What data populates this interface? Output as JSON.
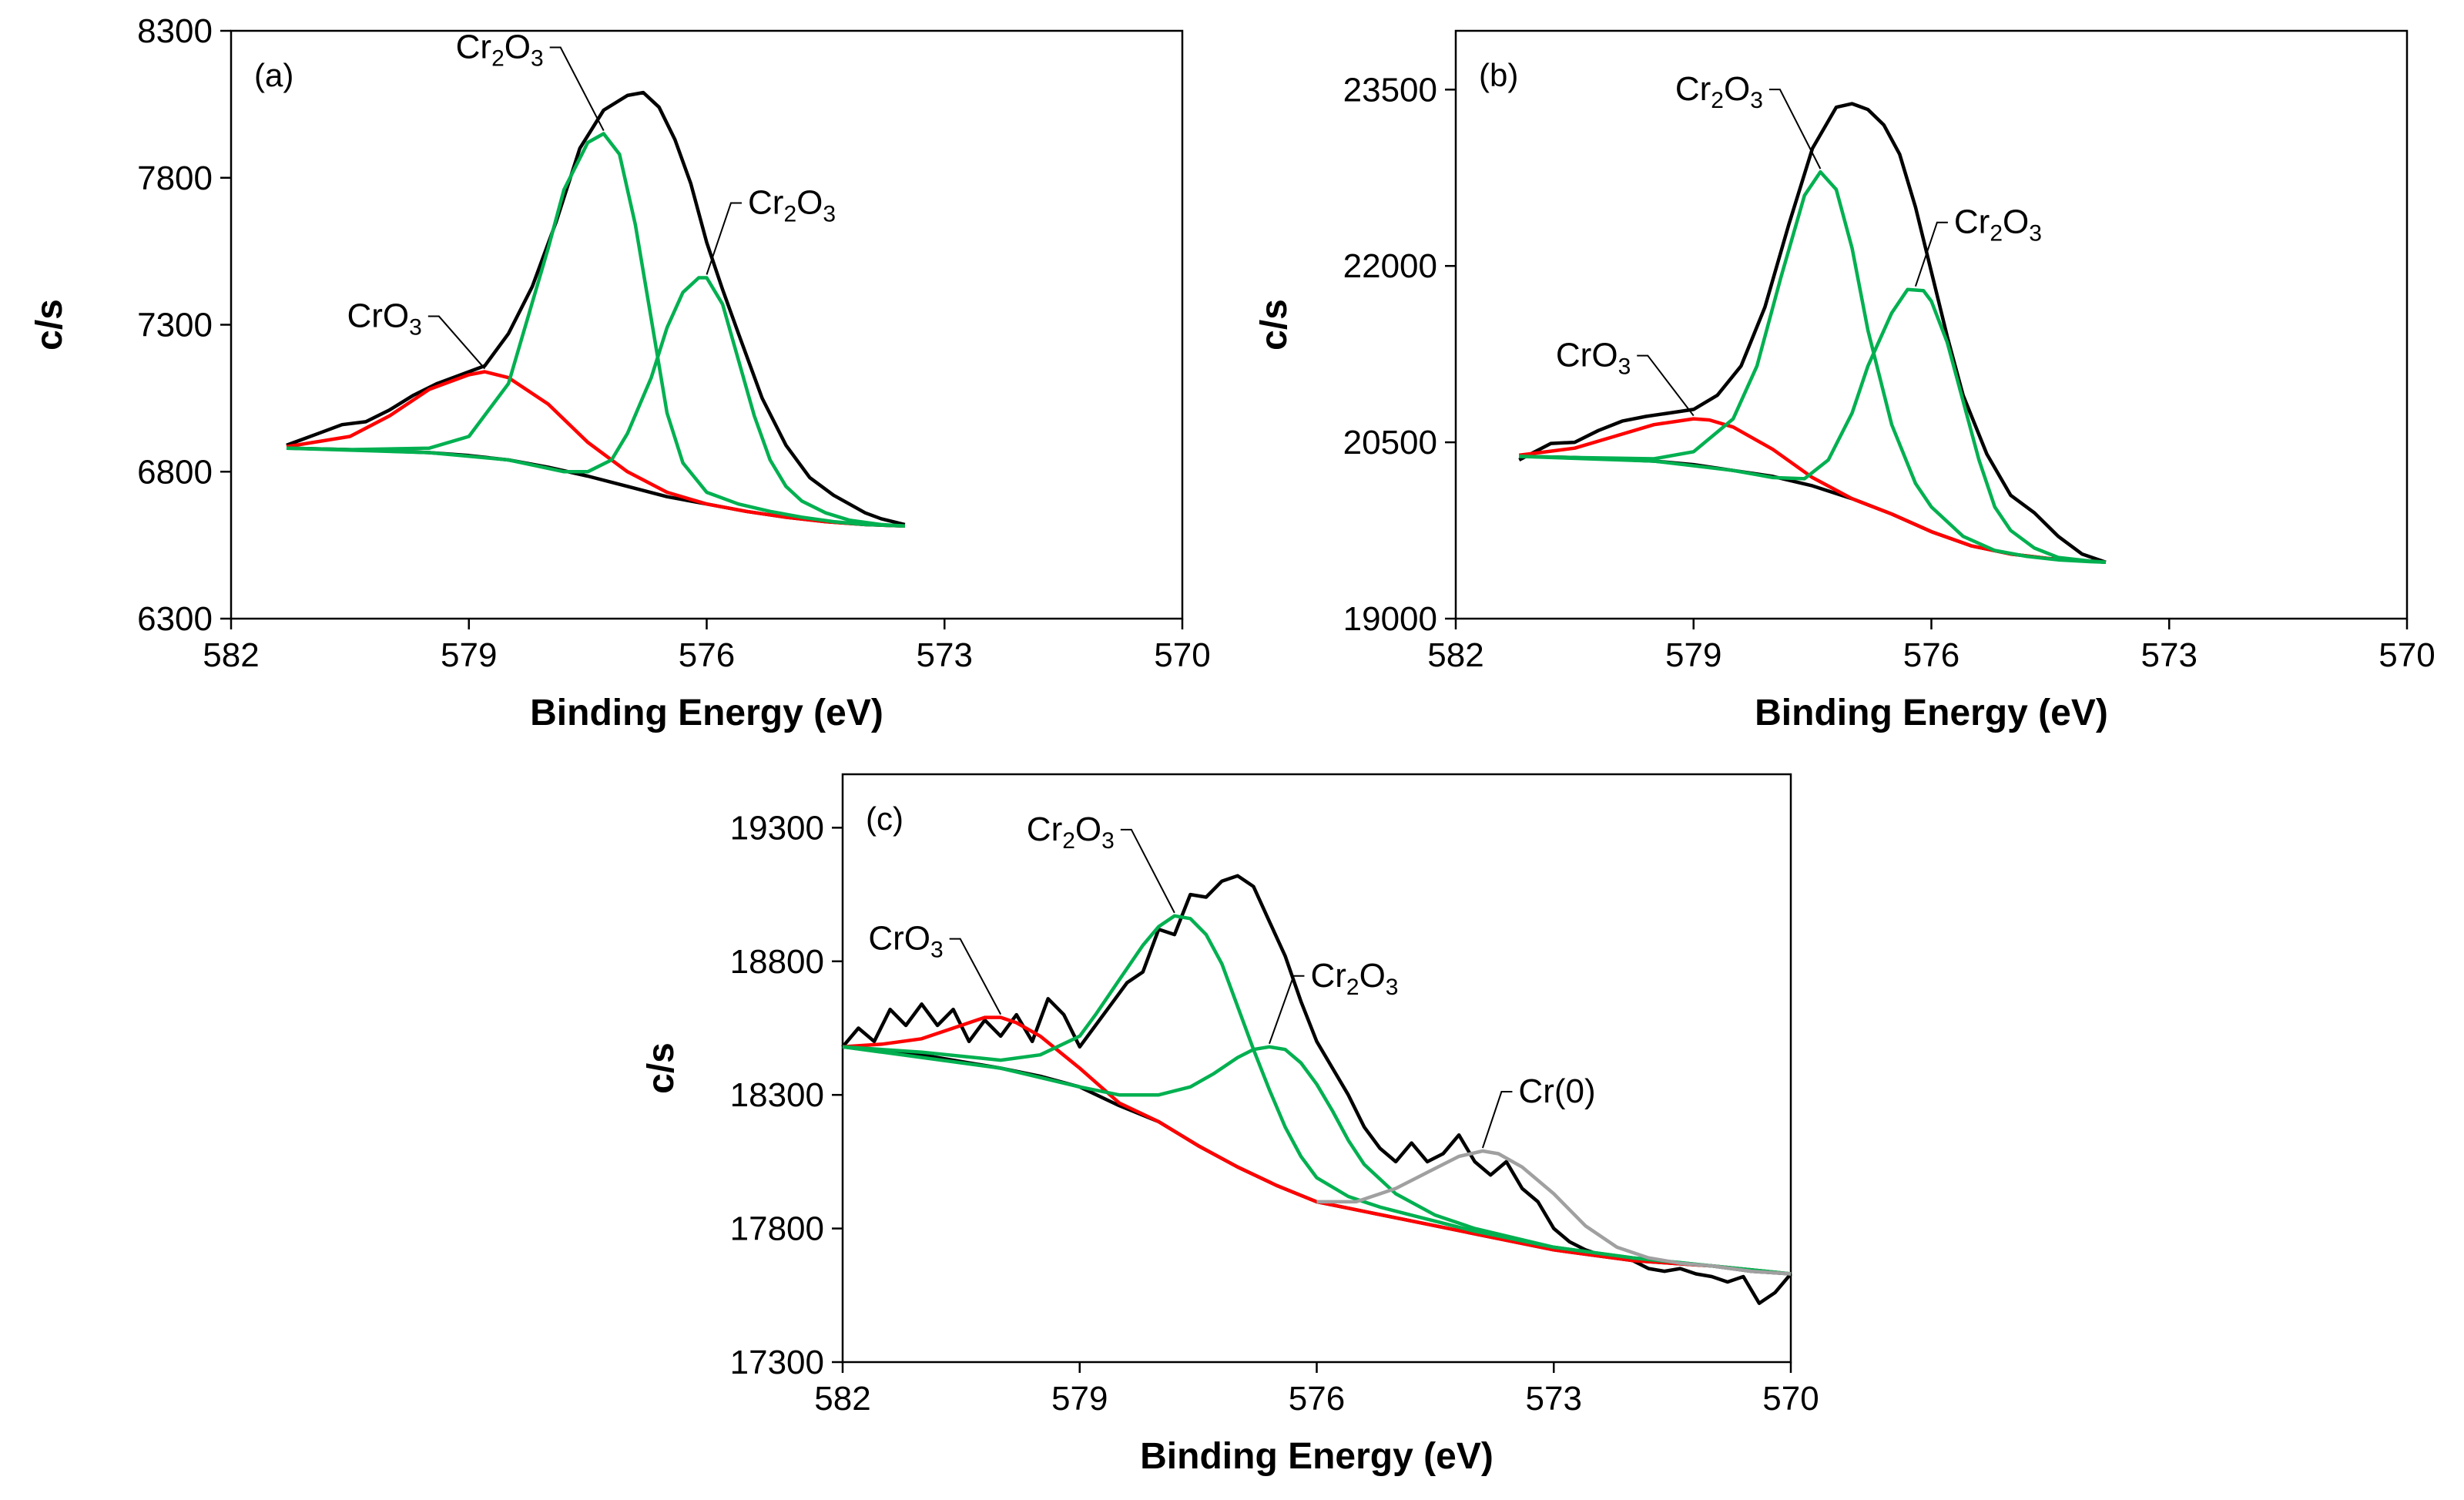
{
  "chart_data": [
    {
      "type": "line",
      "panel_label": "(a)",
      "xlabel": "Binding Energy (eV)",
      "ylabel": "c/s",
      "xlim": [
        582,
        570
      ],
      "xdir": "reversed",
      "ylim": [
        6300,
        8300
      ],
      "xticks": [
        "582",
        "579",
        "576",
        "573",
        "570"
      ],
      "yticks": [
        "6300",
        "6800",
        "7300",
        "7800",
        "8300"
      ],
      "grid": false,
      "legend": "none",
      "series": [
        {
          "role": "envelope",
          "color": "#000000",
          "x": [
            581.3,
            580.9,
            580.6,
            580.3,
            580.0,
            579.7,
            579.4,
            579.1,
            578.8,
            578.5,
            578.2,
            577.9,
            577.6,
            577.3,
            577.0,
            576.8,
            576.6,
            576.4,
            576.2,
            576.0,
            575.8,
            575.6,
            575.3,
            575.0,
            574.7,
            574.4,
            574.2,
            574.0,
            573.8,
            573.5
          ],
          "y": [
            6890,
            6930,
            6960,
            6970,
            7010,
            7060,
            7100,
            7130,
            7160,
            7270,
            7430,
            7650,
            7900,
            8030,
            8080,
            8090,
            8040,
            7930,
            7780,
            7580,
            7420,
            7270,
            7050,
            6890,
            6780,
            6720,
            6690,
            6660,
            6640,
            6620
          ]
        },
        {
          "role": "background",
          "color": "#000000",
          "x": [
            581.3,
            580.5,
            579.5,
            579.0,
            578.5,
            578.0,
            577.5,
            577.0,
            576.5,
            576.0,
            575.5,
            575.0,
            574.5,
            574.0,
            573.5
          ],
          "y": [
            6880,
            6875,
            6865,
            6855,
            6840,
            6815,
            6785,
            6750,
            6715,
            6690,
            6665,
            6645,
            6630,
            6620,
            6615
          ]
        },
        {
          "name": "CrO3",
          "color": "#ff0000",
          "x": [
            581.3,
            580.5,
            580.0,
            579.5,
            579.0,
            578.8,
            578.5,
            578.0,
            577.5,
            577.0,
            576.5,
            576.0,
            575.5,
            575.0,
            574.5,
            574.0,
            573.5
          ],
          "y": [
            6885,
            6920,
            6990,
            7080,
            7130,
            7140,
            7120,
            7030,
            6900,
            6800,
            6730,
            6690,
            6665,
            6645,
            6630,
            6620,
            6615
          ]
        },
        {
          "name": "Cr2O3",
          "color": "#00b050",
          "x": [
            581.3,
            580.5,
            579.5,
            579.0,
            578.5,
            578.0,
            577.8,
            577.5,
            577.3,
            577.1,
            576.9,
            576.7,
            576.5,
            576.3,
            576.0,
            575.6,
            575.2,
            574.8,
            574.4,
            574.0,
            573.5
          ],
          "y": [
            6880,
            6875,
            6880,
            6920,
            7100,
            7560,
            7760,
            7920,
            7950,
            7880,
            7640,
            7320,
            7000,
            6830,
            6730,
            6690,
            6665,
            6645,
            6630,
            6620,
            6615
          ]
        },
        {
          "name": "Cr2O3",
          "color": "#00b050",
          "x": [
            581.3,
            579.5,
            578.5,
            577.8,
            577.5,
            577.2,
            577.0,
            576.7,
            576.5,
            576.3,
            576.1,
            576.0,
            575.8,
            575.6,
            575.4,
            575.2,
            575.0,
            574.8,
            574.5,
            574.2,
            573.8,
            573.5
          ],
          "y": [
            6880,
            6865,
            6840,
            6800,
            6800,
            6840,
            6930,
            7120,
            7290,
            7410,
            7460,
            7460,
            7370,
            7180,
            6990,
            6840,
            6750,
            6700,
            6660,
            6635,
            6620,
            6615
          ]
        }
      ],
      "annotations": [
        {
          "label": "CrO3",
          "x": 578.8,
          "y": 7140
        },
        {
          "label": "Cr2O3",
          "x": 577.3,
          "y": 7950
        },
        {
          "label": "Cr2O3",
          "x": 576.0,
          "y": 7460
        }
      ]
    },
    {
      "type": "line",
      "panel_label": "(b)",
      "xlabel": "Binding Energy (eV)",
      "ylabel": "c/s",
      "xlim": [
        582,
        570
      ],
      "xdir": "reversed",
      "ylim": [
        19000,
        24000
      ],
      "xticks": [
        "582",
        "579",
        "576",
        "573",
        "570"
      ],
      "yticks": [
        "19000",
        "20500",
        "22000",
        "23500"
      ],
      "grid": false,
      "legend": "none",
      "series": [
        {
          "role": "envelope",
          "color": "#000000",
          "x": [
            581.2,
            580.8,
            580.5,
            580.2,
            579.9,
            579.6,
            579.3,
            579.0,
            578.7,
            578.4,
            578.1,
            577.8,
            577.5,
            577.2,
            577.0,
            576.8,
            576.6,
            576.4,
            576.2,
            576.0,
            575.8,
            575.6,
            575.3,
            575.0,
            574.7,
            574.4,
            574.1,
            573.8
          ],
          "y": [
            20350,
            20490,
            20500,
            20600,
            20680,
            20720,
            20750,
            20780,
            20900,
            21150,
            21650,
            22350,
            23000,
            23350,
            23380,
            23330,
            23200,
            22950,
            22500,
            21950,
            21400,
            20900,
            20400,
            20050,
            19900,
            19700,
            19550,
            19480
          ]
        },
        {
          "role": "background",
          "color": "#000000",
          "x": [
            581.2,
            580.5,
            579.5,
            579.0,
            578.5,
            578.0,
            577.5,
            577.0,
            576.5,
            576.0,
            575.5,
            575.0,
            574.5,
            574.0,
            573.8
          ],
          "y": [
            20380,
            20370,
            20340,
            20310,
            20260,
            20210,
            20130,
            20020,
            19890,
            19740,
            19620,
            19550,
            19510,
            19490,
            19480
          ]
        },
        {
          "name": "CrO3",
          "color": "#ff0000",
          "x": [
            581.2,
            580.5,
            580.0,
            579.5,
            579.0,
            578.8,
            578.5,
            578.0,
            577.5,
            577.0,
            576.5,
            576.0,
            575.5,
            575.0,
            574.5,
            574.0,
            573.8
          ],
          "y": [
            20390,
            20450,
            20550,
            20650,
            20700,
            20690,
            20630,
            20440,
            20200,
            20020,
            19890,
            19740,
            19620,
            19550,
            19510,
            19490,
            19480
          ]
        },
        {
          "name": "Cr2O3",
          "color": "#00b050",
          "x": [
            581.2,
            580.5,
            579.5,
            579.0,
            578.5,
            578.2,
            577.9,
            577.6,
            577.4,
            577.2,
            577.0,
            576.8,
            576.5,
            576.2,
            576.0,
            575.6,
            575.2,
            574.8,
            574.4,
            574.0,
            573.8
          ],
          "y": [
            20380,
            20370,
            20360,
            20420,
            20700,
            21150,
            21900,
            22600,
            22800,
            22650,
            22150,
            21450,
            20650,
            20150,
            19950,
            19700,
            19580,
            19530,
            19500,
            19485,
            19480
          ]
        },
        {
          "name": "Cr2O3",
          "color": "#00b050",
          "x": [
            581.2,
            579.5,
            578.5,
            578.0,
            577.6,
            577.3,
            577.0,
            576.8,
            576.5,
            576.3,
            576.1,
            576.0,
            575.8,
            575.6,
            575.4,
            575.2,
            575.0,
            574.7,
            574.4,
            574.0,
            573.8
          ],
          "y": [
            20380,
            20340,
            20260,
            20200,
            20190,
            20350,
            20750,
            21150,
            21600,
            21800,
            21790,
            21700,
            21350,
            20850,
            20350,
            19950,
            19750,
            19600,
            19520,
            19490,
            19480
          ]
        }
      ],
      "annotations": [
        {
          "label": "CrO3",
          "x": 579.0,
          "y": 20700
        },
        {
          "label": "Cr2O3",
          "x": 577.4,
          "y": 22800
        },
        {
          "label": "Cr2O3",
          "x": 576.2,
          "y": 21800
        }
      ]
    },
    {
      "type": "line",
      "panel_label": "(c)",
      "xlabel": "Binding Energy (eV)",
      "ylabel": "c/s",
      "xlim": [
        582,
        570
      ],
      "xdir": "reversed",
      "ylim": [
        17300,
        19500
      ],
      "xticks": [
        "582",
        "579",
        "576",
        "573",
        "570"
      ],
      "yticks": [
        "17300",
        "17800",
        "18300",
        "18800",
        "19300"
      ],
      "grid": false,
      "legend": "none",
      "series": [
        {
          "role": "envelope",
          "color": "#000000",
          "x": [
            582.0,
            581.8,
            581.6,
            581.4,
            581.2,
            581.0,
            580.8,
            580.6,
            580.4,
            580.2,
            580.0,
            579.8,
            579.6,
            579.4,
            579.2,
            579.0,
            578.8,
            578.6,
            578.4,
            578.2,
            578.0,
            577.8,
            577.6,
            577.4,
            577.2,
            577.0,
            576.8,
            576.6,
            576.4,
            576.2,
            576.0,
            575.8,
            575.6,
            575.4,
            575.2,
            575.0,
            574.8,
            574.6,
            574.4,
            574.2,
            574.0,
            573.8,
            573.6,
            573.4,
            573.2,
            573.0,
            572.8,
            572.6,
            572.4,
            572.2,
            572.0,
            571.8,
            571.6,
            571.4,
            571.2,
            571.0,
            570.8,
            570.6,
            570.4,
            570.2,
            570.0
          ],
          "y": [
            18480,
            18550,
            18500,
            18620,
            18560,
            18640,
            18560,
            18620,
            18500,
            18580,
            18520,
            18600,
            18500,
            18660,
            18600,
            18480,
            18560,
            18640,
            18720,
            18760,
            18920,
            18900,
            19050,
            19040,
            19100,
            19120,
            19080,
            18950,
            18820,
            18650,
            18500,
            18400,
            18300,
            18180,
            18100,
            18050,
            18120,
            18050,
            18080,
            18150,
            18050,
            18000,
            18050,
            17950,
            17900,
            17800,
            17750,
            17720,
            17700,
            17690,
            17680,
            17650,
            17640,
            17650,
            17630,
            17620,
            17600,
            17620,
            17520,
            17560,
            17630
          ]
        },
        {
          "role": "background",
          "color": "#000000",
          "x": [
            582.0,
            581.0,
            580.0,
            579.5,
            579.0,
            578.5,
            578.0,
            577.5,
            577.0,
            576.5,
            576.0,
            575.5,
            575.0,
            574.5,
            574.0,
            573.5,
            573.0,
            572.5,
            572.0,
            571.5,
            571.0,
            570.5,
            570.0
          ],
          "y": [
            18480,
            18450,
            18400,
            18370,
            18330,
            18260,
            18200,
            18110,
            18030,
            17960,
            17900,
            17870,
            17840,
            17810,
            17780,
            17750,
            17720,
            17700,
            17680,
            17670,
            17660,
            17640,
            17630
          ]
        },
        {
          "name": "CrO3",
          "color": "#ff0000",
          "x": [
            582.0,
            581.5,
            581.0,
            580.5,
            580.2,
            580.0,
            579.8,
            579.5,
            579.0,
            578.5,
            578.0,
            577.5,
            577.0,
            576.5,
            576.0,
            575.5,
            575.0,
            574.0,
            573.0,
            572.0,
            571.0,
            570.0
          ],
          "y": [
            18480,
            18490,
            18510,
            18560,
            18590,
            18590,
            18570,
            18520,
            18400,
            18270,
            18200,
            18110,
            18030,
            17960,
            17900,
            17870,
            17840,
            17780,
            17720,
            17680,
            17660,
            17630
          ]
        },
        {
          "name": "Cr2O3",
          "color": "#00b050",
          "x": [
            582.0,
            581.0,
            580.0,
            579.5,
            579.0,
            578.8,
            578.5,
            578.2,
            578.0,
            577.8,
            577.6,
            577.4,
            577.2,
            577.0,
            576.8,
            576.6,
            576.4,
            576.2,
            576.0,
            575.6,
            575.2,
            574.8,
            574.4,
            574.0,
            573.5,
            573.0,
            572.0,
            571.0,
            570.0
          ],
          "y": [
            18480,
            18460,
            18430,
            18450,
            18520,
            18600,
            18730,
            18860,
            18930,
            18970,
            18960,
            18900,
            18790,
            18630,
            18470,
            18320,
            18180,
            18070,
            17990,
            17920,
            17880,
            17850,
            17820,
            17790,
            17760,
            17730,
            17690,
            17660,
            17630
          ]
        },
        {
          "name": "Cr2O3",
          "color": "#00b050",
          "x": [
            582.0,
            580.0,
            579.0,
            578.5,
            578.0,
            577.6,
            577.3,
            577.0,
            576.8,
            576.6,
            576.4,
            576.2,
            576.0,
            575.8,
            575.6,
            575.4,
            575.0,
            574.5,
            574.0,
            573.0,
            572.0,
            571.0,
            570.0
          ],
          "y": [
            18480,
            18400,
            18330,
            18300,
            18300,
            18330,
            18380,
            18440,
            18470,
            18480,
            18470,
            18420,
            18340,
            18240,
            18130,
            18040,
            17930,
            17850,
            17800,
            17730,
            17690,
            17660,
            17630
          ]
        },
        {
          "name": "Cr(0)",
          "color": "#a0a0a0",
          "x": [
            576.0,
            575.5,
            575.0,
            574.6,
            574.2,
            573.9,
            573.7,
            573.4,
            573.0,
            572.6,
            572.2,
            571.8,
            571.4,
            571.0,
            570.5,
            570.0
          ],
          "y": [
            17900,
            17900,
            17950,
            18010,
            18070,
            18090,
            18080,
            18030,
            17930,
            17810,
            17730,
            17690,
            17670,
            17660,
            17640,
            17630
          ]
        }
      ],
      "annotations": [
        {
          "label": "CrO3",
          "x": 580.0,
          "y": 18590
        },
        {
          "label": "Cr2O3",
          "x": 577.8,
          "y": 18970
        },
        {
          "label": "Cr2O3",
          "x": 576.6,
          "y": 18480
        },
        {
          "label": "Cr(0)",
          "x": 573.9,
          "y": 18090
        }
      ]
    }
  ]
}
